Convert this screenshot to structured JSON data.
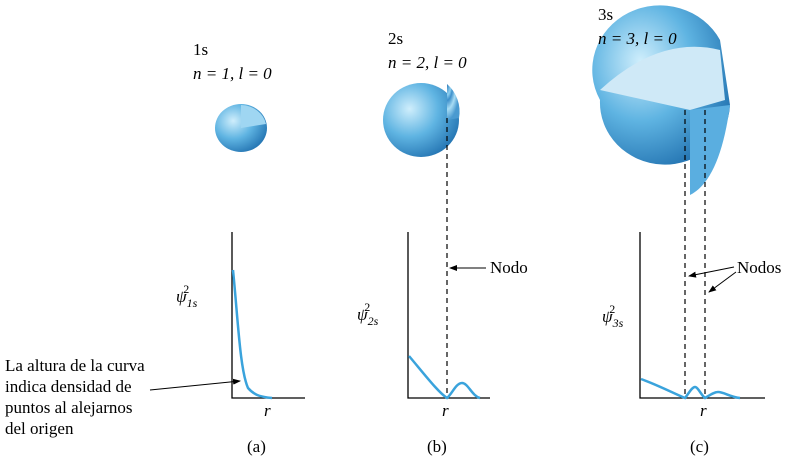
{
  "panels": [
    {
      "orbital": "1s",
      "quantum_numbers": "n = 1, l = 0",
      "y_symbol": "ψ",
      "y_subscript": "1s",
      "y_superscript": "2",
      "x_label": "r",
      "caption": "(a)"
    },
    {
      "orbital": "2s",
      "quantum_numbers": "n = 2, l = 0",
      "y_symbol": "ψ",
      "y_subscript": "2s",
      "y_superscript": "2",
      "x_label": "r",
      "caption": "(b)",
      "node_label": "Nodo"
    },
    {
      "orbital": "3s",
      "quantum_numbers": "n = 3, l = 0",
      "y_symbol": "ψ",
      "y_subscript": "3s",
      "y_superscript": "2",
      "x_label": "r",
      "caption": "(c)",
      "node_label": "Nodos"
    }
  ],
  "note": [
    "La altura de la curva",
    "indica densidad de",
    "puntos al alejarnos",
    "del origen"
  ]
}
